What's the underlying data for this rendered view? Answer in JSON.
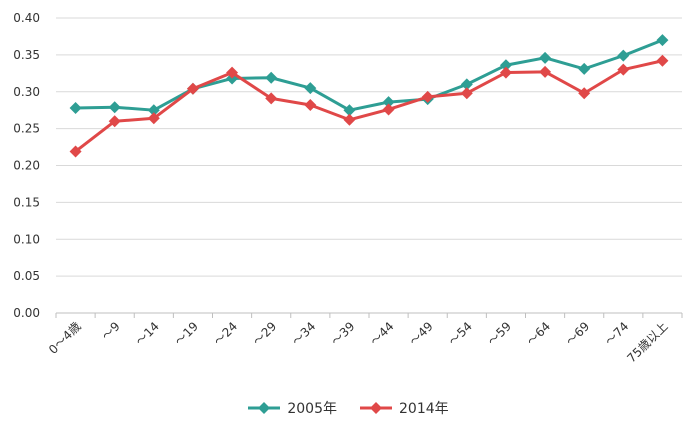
{
  "chart_data": {
    "type": "line",
    "title": "",
    "xlabel": "",
    "ylabel": "",
    "categories": [
      "0～4歳",
      "～9",
      "～14",
      "～19",
      "～24",
      "～29",
      "～34",
      "～39",
      "～44",
      "～49",
      "～54",
      "～59",
      "～64",
      "～69",
      "～74",
      "75歳以上"
    ],
    "y_ticks": [
      "0.00",
      "0.05",
      "0.10",
      "0.15",
      "0.20",
      "0.25",
      "0.30",
      "0.35",
      "0.40"
    ],
    "ylim": [
      0,
      0.4
    ],
    "grid": "horizontal",
    "legend_position": "bottom",
    "series": [
      {
        "name": "2005年",
        "color": "#2e9e94",
        "marker": "diamond",
        "values": [
          0.278,
          0.279,
          0.275,
          0.304,
          0.318,
          0.319,
          0.305,
          0.275,
          0.286,
          0.29,
          0.31,
          0.336,
          0.346,
          0.331,
          0.349,
          0.37
        ]
      },
      {
        "name": "2014年",
        "color": "#e04848",
        "marker": "diamond",
        "values": [
          0.219,
          0.26,
          0.264,
          0.304,
          0.326,
          0.291,
          0.282,
          0.262,
          0.276,
          0.293,
          0.298,
          0.326,
          0.327,
          0.298,
          0.33,
          0.342
        ]
      }
    ]
  }
}
